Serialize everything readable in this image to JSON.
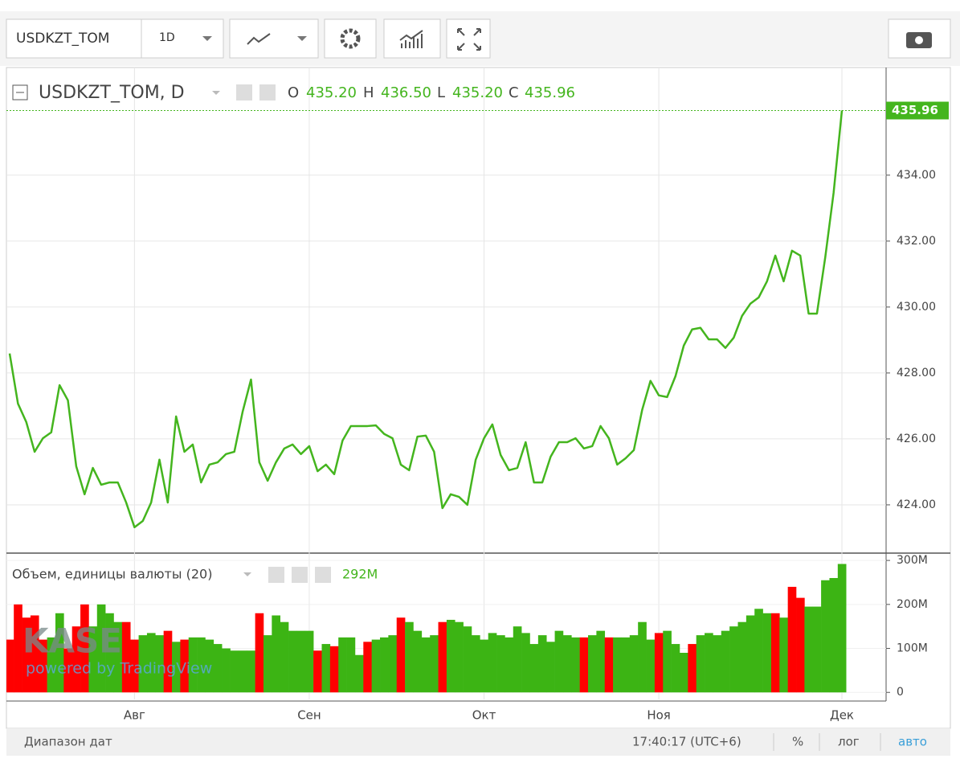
{
  "toolbar": {
    "symbol": "USDKZT_TOM",
    "interval": "1D"
  },
  "legend": {
    "symbol": "USDKZT_TOM, D",
    "o_label": "O",
    "o": "435.20",
    "h_label": "H",
    "h": "436.50",
    "l_label": "L",
    "l": "435.20",
    "c_label": "C",
    "c": "435.96"
  },
  "volume_legend": {
    "name": "Объем, единицы валюты (20)",
    "value": "292M"
  },
  "watermark": {
    "brand": "KASE",
    "powered": "powered by TradingView"
  },
  "footer": {
    "range": "Диапазон дат",
    "time": "17:40:17 (UTC+6)",
    "percent": "%",
    "log": "лог",
    "auto": "авто"
  },
  "chart_data": [
    {
      "type": "line",
      "color": "#44b51e",
      "grid": true,
      "categories": [
        null,
        null,
        null,
        null,
        null,
        null,
        null,
        null,
        null,
        null,
        null,
        null,
        null,
        null,
        null,
        "Авг",
        null,
        null,
        null,
        null,
        null,
        null,
        null,
        null,
        null,
        null,
        null,
        null,
        null,
        null,
        null,
        null,
        null,
        null,
        null,
        null,
        "Сен",
        null,
        null,
        null,
        null,
        null,
        null,
        null,
        null,
        null,
        null,
        null,
        null,
        null,
        null,
        null,
        null,
        null,
        null,
        null,
        null,
        "Окт",
        null,
        null,
        null,
        null,
        null,
        null,
        null,
        null,
        null,
        null,
        null,
        null,
        null,
        null,
        null,
        null,
        null,
        null,
        null,
        null,
        "Ноя",
        null,
        null,
        null,
        null,
        null,
        null,
        null,
        null,
        null,
        null,
        null,
        null,
        null,
        null,
        null,
        null,
        null,
        null,
        null,
        null,
        null,
        "Дек"
      ],
      "values": [
        428.59,
        427.07,
        426.51,
        425.61,
        426.02,
        426.2,
        427.63,
        427.17,
        425.17,
        424.32,
        425.12,
        424.61,
        424.68,
        424.68,
        424.07,
        423.32,
        423.51,
        424.07,
        425.37,
        424.07,
        426.68,
        425.61,
        425.83,
        424.68,
        425.22,
        425.29,
        425.54,
        425.61,
        426.83,
        427.8,
        425.29,
        424.73,
        425.29,
        425.71,
        425.83,
        425.54,
        425.78,
        425.02,
        425.22,
        424.93,
        425.95,
        426.39,
        426.39,
        426.39,
        426.41,
        426.15,
        426.02,
        425.22,
        425.05,
        426.07,
        426.1,
        425.61,
        423.9,
        424.32,
        424.24,
        424.0,
        425.37,
        426.02,
        426.44,
        425.51,
        425.05,
        425.12,
        425.9,
        424.68,
        424.68,
        425.46,
        425.9,
        425.9,
        426.02,
        425.71,
        425.78,
        426.39,
        426.02,
        425.22,
        425.41,
        425.66,
        426.88,
        427.76,
        427.32,
        427.27,
        427.9,
        428.83,
        429.32,
        429.37,
        429.02,
        429.02,
        428.76,
        429.07,
        429.73,
        430.1,
        430.29,
        430.78,
        431.56,
        430.78,
        431.71,
        431.56,
        429.8,
        429.8,
        431.51,
        433.46,
        435.96
      ],
      "ylim": [
        422.56,
        437.24
      ],
      "yticks": [
        {
          "value": 424,
          "label": "424.00"
        },
        {
          "value": 426,
          "label": "426.00"
        },
        {
          "value": 428,
          "label": "428.00"
        },
        {
          "value": 430,
          "label": "430.00"
        },
        {
          "value": 432,
          "label": "432.00"
        },
        {
          "value": 434,
          "label": "434.00"
        }
      ]
    },
    {
      "type": "bar",
      "grid": true,
      "values": [
        120,
        200,
        170,
        175,
        120,
        125,
        180,
        100,
        150,
        200,
        150,
        200,
        180,
        160,
        160,
        120,
        130,
        135,
        130,
        140,
        115,
        120,
        125,
        125,
        120,
        110,
        100,
        95,
        95,
        95,
        180,
        130,
        175,
        160,
        140,
        140,
        140,
        95,
        110,
        105,
        125,
        125,
        85,
        115,
        120,
        125,
        130,
        170,
        160,
        140,
        125,
        130,
        160,
        165,
        160,
        150,
        130,
        120,
        135,
        130,
        125,
        150,
        135,
        110,
        130,
        115,
        140,
        130,
        125,
        125,
        130,
        140,
        125,
        125,
        125,
        130,
        160,
        120,
        135,
        140,
        110,
        90,
        110,
        130,
        135,
        130,
        140,
        150,
        160,
        175,
        190,
        180,
        180,
        170,
        240,
        215,
        195,
        195,
        255,
        260,
        292
      ],
      "colors": [
        "#ff0000",
        "#ff0000",
        "#ff0000",
        "#ff0000",
        "#ff0000",
        "#3cb414",
        "#3cb414",
        "#ff0000",
        "#ff0000",
        "#ff0000",
        "#3cb414",
        "#3cb414",
        "#3cb414",
        "#3cb414",
        "#ff0000",
        "#ff0000",
        "#3cb414",
        "#3cb414",
        "#3cb414",
        "#ff0000",
        "#3cb414",
        "#ff0000",
        "#3cb414",
        "#3cb414",
        "#3cb414",
        "#3cb414",
        "#3cb414",
        "#3cb414",
        "#3cb414",
        "#3cb414",
        "#ff0000",
        "#3cb414",
        "#3cb414",
        "#3cb414",
        "#3cb414",
        "#3cb414",
        "#3cb414",
        "#ff0000",
        "#3cb414",
        "#ff0000",
        "#3cb414",
        "#3cb414",
        "#3cb414",
        "#ff0000",
        "#3cb414",
        "#3cb414",
        "#3cb414",
        "#ff0000",
        "#3cb414",
        "#3cb414",
        "#3cb414",
        "#3cb414",
        "#ff0000",
        "#3cb414",
        "#3cb414",
        "#3cb414",
        "#3cb414",
        "#3cb414",
        "#3cb414",
        "#3cb414",
        "#3cb414",
        "#3cb414",
        "#3cb414",
        "#3cb414",
        "#3cb414",
        "#3cb414",
        "#3cb414",
        "#3cb414",
        "#3cb414",
        "#ff0000",
        "#3cb414",
        "#3cb414",
        "#ff0000",
        "#3cb414",
        "#3cb414",
        "#3cb414",
        "#3cb414",
        "#3cb414",
        "#ff0000",
        "#3cb414",
        "#3cb414",
        "#3cb414",
        "#ff0000",
        "#3cb414",
        "#3cb414",
        "#3cb414",
        "#3cb414",
        "#3cb414",
        "#3cb414",
        "#3cb414",
        "#3cb414",
        "#3cb414",
        "#ff0000",
        "#3cb414",
        "#ff0000",
        "#ff0000",
        "#3cb414",
        "#3cb414",
        "#3cb414",
        "#3cb414",
        "#3cb414"
      ],
      "ylim": [
        -16,
        313
      ],
      "yticks": [
        0,
        {
          "value": 100,
          "label": "100M"
        },
        {
          "value": 200,
          "label": "200M"
        },
        {
          "value": 300,
          "label": "300M"
        }
      ]
    }
  ]
}
